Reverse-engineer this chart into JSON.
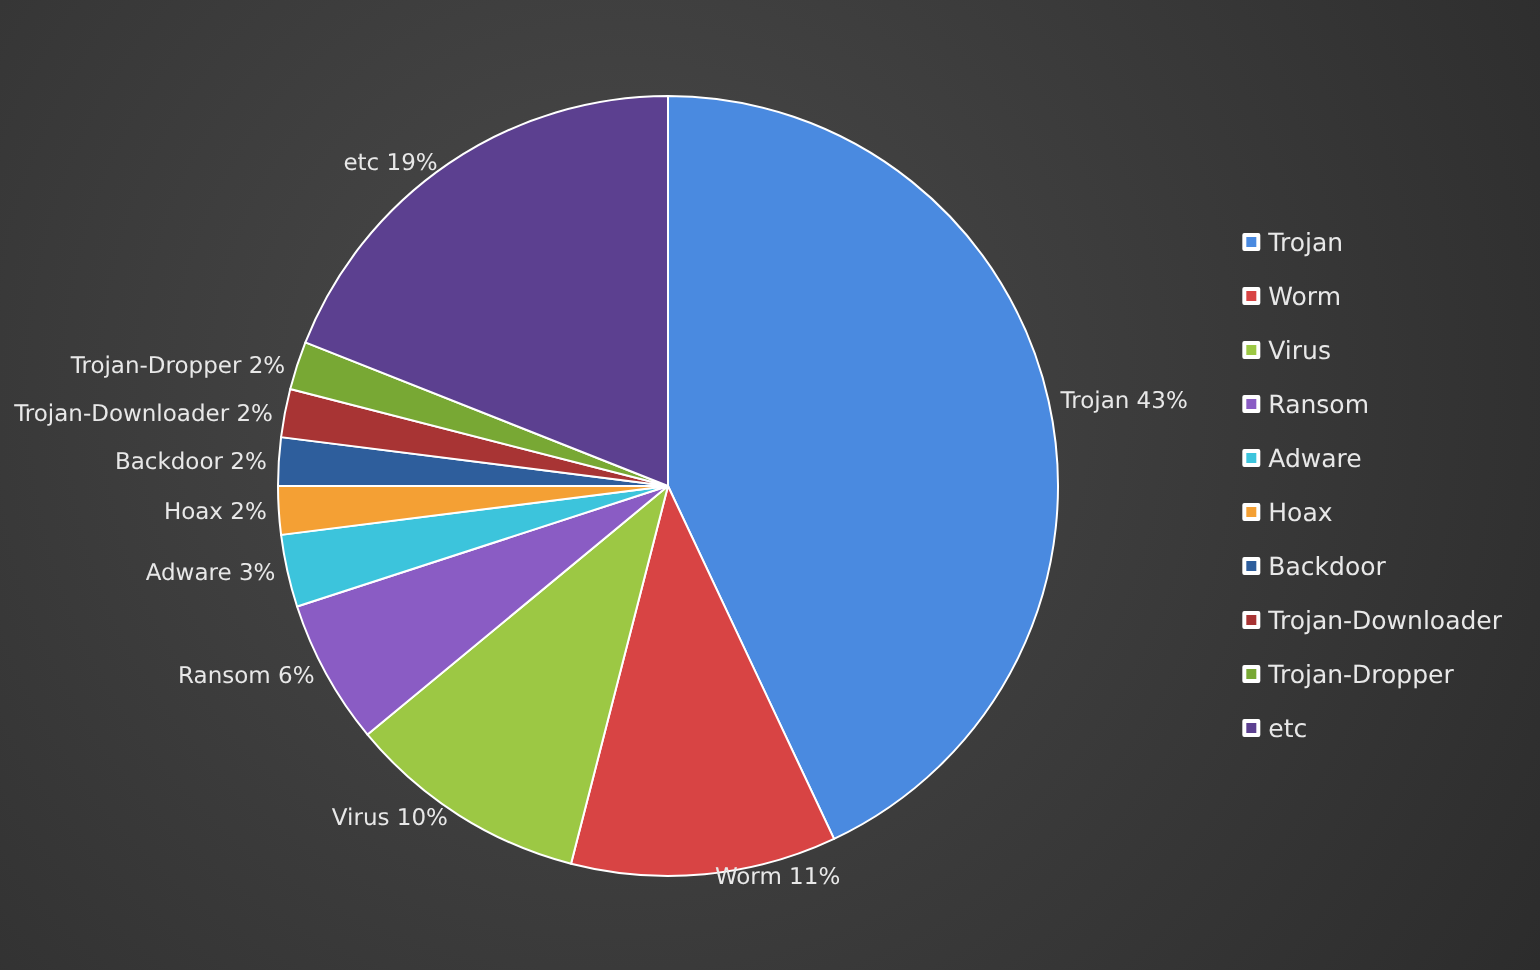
{
  "chart_data": {
    "type": "pie",
    "categories": [
      "Trojan",
      "Worm",
      "Virus",
      "Ransom",
      "Adware",
      "Hoax",
      "Backdoor",
      "Trojan-Downloader",
      "Trojan-Dropper",
      "etc"
    ],
    "values": [
      43,
      11,
      10,
      6,
      3,
      2,
      2,
      2,
      2,
      19
    ],
    "value_labels": [
      "43%",
      "11%",
      "10%",
      "6%",
      "3%",
      "2%",
      "2%",
      "2%",
      "2%",
      "19%"
    ],
    "colors": [
      "#4a8ae0",
      "#d84444",
      "#9cc844",
      "#8a5cc4",
      "#3cc4dc",
      "#f4a034",
      "#2e5e9c",
      "#a83434",
      "#78a834",
      "#5c4090"
    ],
    "legend": "right"
  }
}
